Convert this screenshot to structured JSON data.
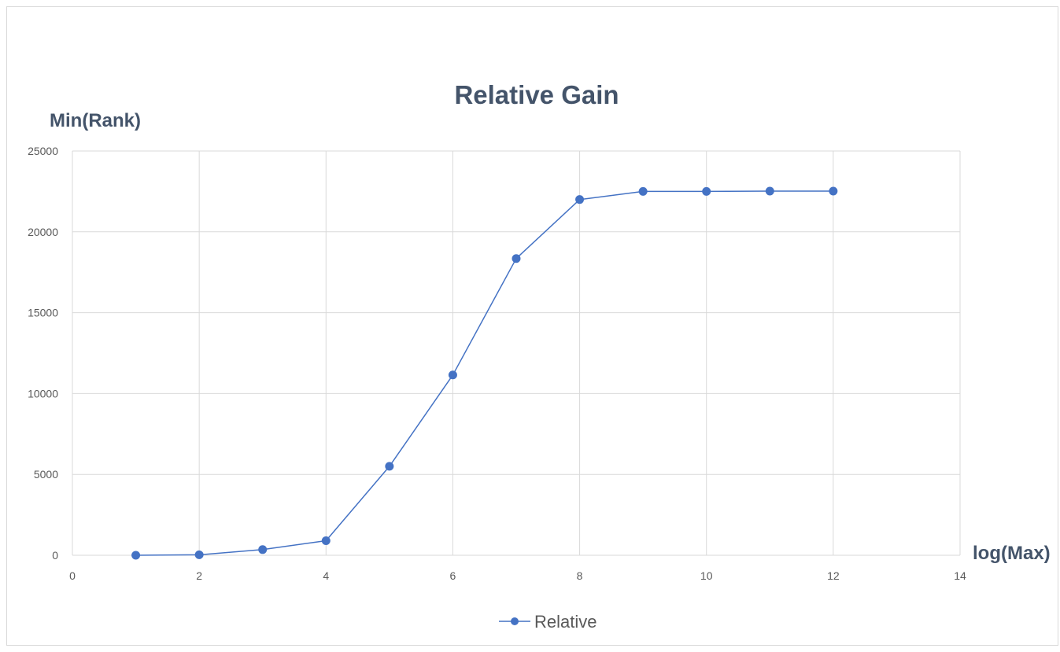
{
  "colors": {
    "series": "#4472C4",
    "text": "#595959",
    "title": "#44546A",
    "grid": "#D9D9D9",
    "border": "#D9D9D9"
  },
  "chart_data": {
    "type": "line",
    "title": "Relative Gain",
    "xlabel": "log(Max)",
    "ylabel": "Min(Rank)",
    "xlim": [
      0,
      14
    ],
    "ylim": [
      0,
      25000
    ],
    "x_ticks": [
      0,
      2,
      4,
      6,
      8,
      10,
      12,
      14
    ],
    "y_ticks": [
      0,
      5000,
      10000,
      15000,
      20000,
      25000
    ],
    "grid": true,
    "legend_position": "bottom",
    "series": [
      {
        "name": "Relative",
        "x": [
          1,
          2,
          3,
          4,
          5,
          6,
          7,
          8,
          9,
          10,
          11,
          12
        ],
        "y": [
          0,
          30,
          350,
          900,
          5500,
          11150,
          18350,
          22000,
          22500,
          22500,
          22520,
          22520
        ]
      }
    ]
  }
}
